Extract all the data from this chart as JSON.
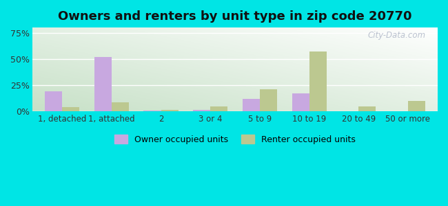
{
  "title": "Owners and renters by unit type in zip code 20770",
  "categories": [
    "1, detached",
    "1, attached",
    "2",
    "3 or 4",
    "5 to 9",
    "10 to 19",
    "20 to 49",
    "50 or more"
  ],
  "owner_values": [
    19,
    52,
    1,
    1.5,
    12,
    17,
    0.5,
    0.5
  ],
  "renter_values": [
    4,
    9,
    1.5,
    5,
    21,
    57,
    5,
    10
  ],
  "owner_color": "#c8a8e0",
  "renter_color": "#bcc890",
  "background_color": "#00e5e5",
  "ylabel_values": [
    "0%",
    "25%",
    "50%",
    "75%"
  ],
  "yticks": [
    0,
    25,
    50,
    75
  ],
  "ylim": [
    0,
    80
  ],
  "title_fontsize": 13,
  "legend_label_owner": "Owner occupied units",
  "legend_label_renter": "Renter occupied units",
  "watermark": "City-Data.com"
}
